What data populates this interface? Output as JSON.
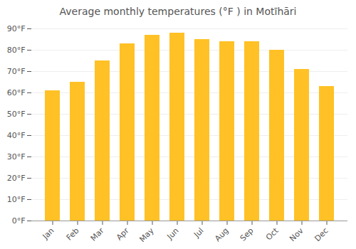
{
  "chart_data": {
    "type": "bar",
    "title": "Average monthly temperatures (°F ) in Motīhāri",
    "categories": [
      "Jan",
      "Feb",
      "Mar",
      "Apr",
      "May",
      "Jun",
      "Jul",
      "Aug",
      "Sep",
      "Oct",
      "Nov",
      "Dec"
    ],
    "values": [
      61,
      65,
      75,
      83,
      87,
      88,
      85,
      84,
      84,
      80,
      71,
      63
    ],
    "color": "#FFC125",
    "ylim": [
      0,
      90
    ],
    "yticks": [
      {
        "value": 0,
        "label": "0°F"
      },
      {
        "value": 10,
        "label": "10°F"
      },
      {
        "value": 20,
        "label": "20°F"
      },
      {
        "value": 30,
        "label": "30°F"
      },
      {
        "value": 40,
        "label": "40°F"
      },
      {
        "value": 50,
        "label": "50°F"
      },
      {
        "value": 60,
        "label": "60°F"
      },
      {
        "value": 70,
        "label": "70°F"
      },
      {
        "value": 80,
        "label": "80°F"
      },
      {
        "value": 90,
        "label": "90°F"
      }
    ],
    "grid": true
  }
}
